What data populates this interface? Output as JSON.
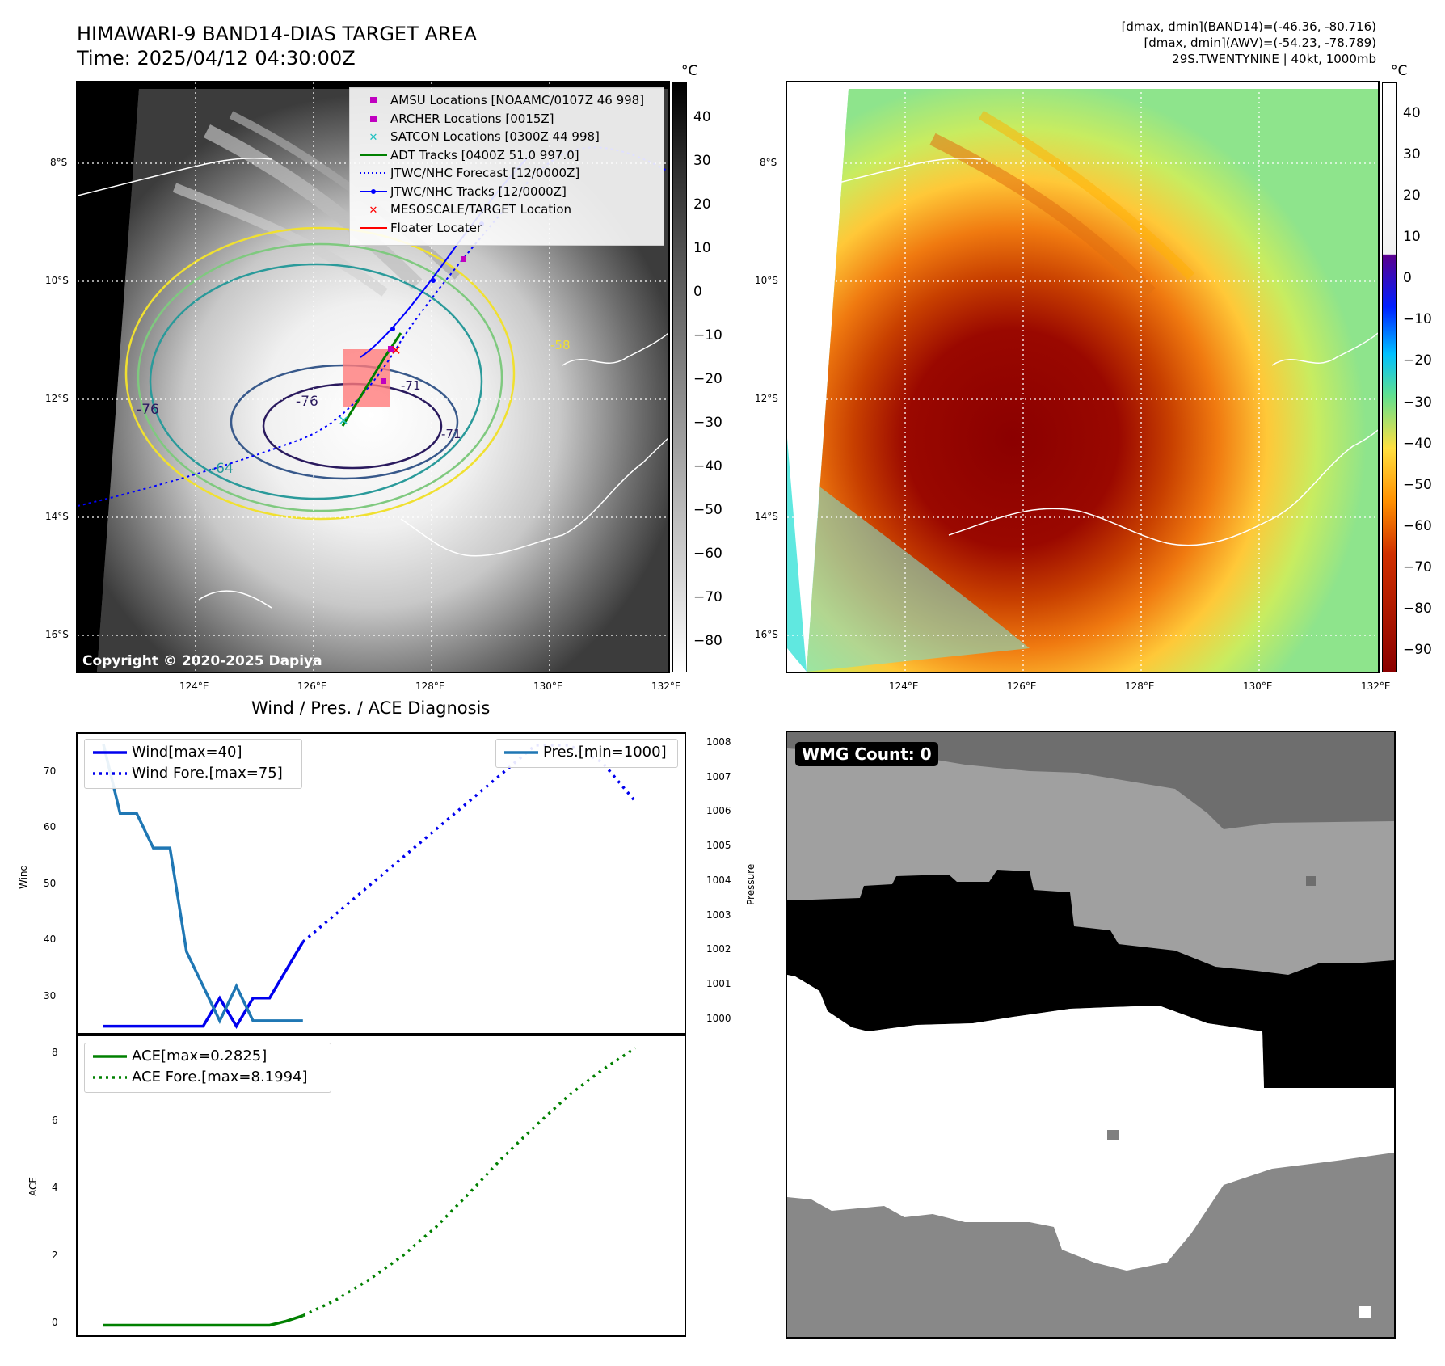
{
  "header": {
    "title_line1": "HIMAWARI-9 BAND14-DIAS TARGET AREA",
    "title_line2": "Time: 2025/04/12 04:30:00Z",
    "stats_line1": "[dmax, dmin](BAND14)=(-46.36, -80.716)",
    "stats_line2": "[dmax, dmin](AWV)=(-54.23, -78.789)",
    "stats_line3": "29S.TWENTYNINE | 40kt, 1000mb"
  },
  "map_axes": {
    "lat_labels": [
      "8°S",
      "10°S",
      "12°S",
      "14°S",
      "16°S"
    ],
    "lon_labels": [
      "124°E",
      "126°E",
      "128°E",
      "130°E",
      "132°E"
    ]
  },
  "band14_map": {
    "copyright": "Copyright © 2020-2025 Dapiya",
    "contour_labels": [
      "-76",
      "-76",
      "-64",
      "-71",
      "-71",
      "-58"
    ],
    "colorbar": {
      "unit": "°C",
      "labels": [
        "40",
        "30",
        "20",
        "10",
        "0",
        "−10",
        "−20",
        "−30",
        "−40",
        "−50",
        "−60",
        "−70",
        "−80"
      ]
    },
    "legend": [
      {
        "label": "AMSU Locations [NOAAMC/0107Z 46 998]",
        "symbol": "square",
        "color": "#c000c0"
      },
      {
        "label": "ARCHER Locations [0015Z]",
        "symbol": "square",
        "color": "#c000c0"
      },
      {
        "label": "SATCON Locations [0300Z 44 998]",
        "symbol": "x",
        "color": "#20c0c0"
      },
      {
        "label": "ADT Tracks [0400Z 51.0 997.0]",
        "symbol": "line",
        "color": "#008000"
      },
      {
        "label": "JTWC/NHC Forecast [12/0000Z]",
        "symbol": "dotted",
        "color": "#0000ff"
      },
      {
        "label": "JTWC/NHC Tracks [12/0000Z]",
        "symbol": "line-dot",
        "color": "#0000ff"
      },
      {
        "label": "MESOSCALE/TARGET Location",
        "symbol": "x",
        "color": "#ff0000"
      },
      {
        "label": "Floater Locater",
        "symbol": "line",
        "color": "#ff0000"
      }
    ]
  },
  "awv_map": {
    "colorbar": {
      "unit": "°C",
      "labels": [
        "40",
        "30",
        "20",
        "10",
        "0",
        "−10",
        "−20",
        "−30",
        "−40",
        "−50",
        "−60",
        "−70",
        "−80",
        "−90"
      ]
    }
  },
  "wmg_panel": {
    "label": "WMG Count: 0"
  },
  "chart_data": [
    {
      "type": "line",
      "title": "Wind / Pres. / ACE Diagnosis",
      "ylabel": "Wind",
      "y2label": "Pressure",
      "ylim": [
        23.5,
        77
      ],
      "y2lim": [
        999.6,
        1008.3
      ],
      "x": [
        0,
        1,
        2,
        3,
        4,
        5,
        6,
        7,
        8,
        9,
        10,
        11,
        12,
        13,
        14,
        15,
        16,
        17,
        18,
        19,
        20,
        21,
        22,
        23,
        24,
        25,
        26,
        27,
        28,
        29,
        30,
        31,
        32
      ],
      "yticks": [
        "70",
        "60",
        "50",
        "40",
        "30"
      ],
      "y2ticks": [
        "1008",
        "1007",
        "1006",
        "1005",
        "1004",
        "1003",
        "1002",
        "1001",
        "1000"
      ],
      "series": [
        {
          "name": "Wind[max=40]",
          "axis": "left",
          "style": "solid",
          "color": "#0000ee",
          "x": [
            0,
            1,
            2,
            3,
            4,
            5,
            6,
            7,
            8,
            9,
            10,
            11,
            12
          ],
          "values": [
            25,
            25,
            25,
            25,
            25,
            25,
            25,
            30,
            25,
            30,
            30,
            35,
            40
          ]
        },
        {
          "name": "Wind Fore.[max=75]",
          "axis": "left",
          "style": "dotted",
          "color": "#0000ee",
          "x": [
            12,
            14,
            16,
            18,
            20,
            22,
            24,
            26,
            28,
            30,
            32
          ],
          "values": [
            40,
            45,
            50,
            55,
            60,
            65,
            70,
            75,
            75,
            72,
            65
          ]
        },
        {
          "name": "Pres.[min=1000]",
          "axis": "right",
          "style": "solid",
          "color": "#1f77b4",
          "x": [
            0,
            1,
            2,
            3,
            4,
            5,
            6,
            7,
            8,
            9,
            10,
            11,
            12
          ],
          "values": [
            1008,
            1006,
            1006,
            1005,
            1005,
            1002,
            1001,
            1000,
            1001,
            1000,
            1000,
            1000,
            1000
          ]
        }
      ]
    },
    {
      "type": "line",
      "ylabel": "ACE",
      "ylim": [
        -0.3,
        8.6
      ],
      "yticks": [
        "8",
        "6",
        "4",
        "2",
        "0"
      ],
      "series": [
        {
          "name": "ACE[max=0.2825]",
          "style": "solid",
          "color": "#008000",
          "x": [
            0,
            1,
            2,
            3,
            4,
            5,
            6,
            7,
            8,
            9,
            10,
            11,
            12
          ],
          "values": [
            0,
            0,
            0,
            0,
            0,
            0,
            0,
            0,
            0,
            0,
            0,
            0.12,
            0.2825
          ]
        },
        {
          "name": "ACE Fore.[max=8.1994]",
          "style": "dotted",
          "color": "#008000",
          "x": [
            12,
            14,
            16,
            18,
            20,
            22,
            24,
            26,
            28,
            30,
            32
          ],
          "values": [
            0.2825,
            0.75,
            1.35,
            2.05,
            2.9,
            3.9,
            4.95,
            5.9,
            6.8,
            7.55,
            8.1994
          ]
        }
      ]
    }
  ]
}
